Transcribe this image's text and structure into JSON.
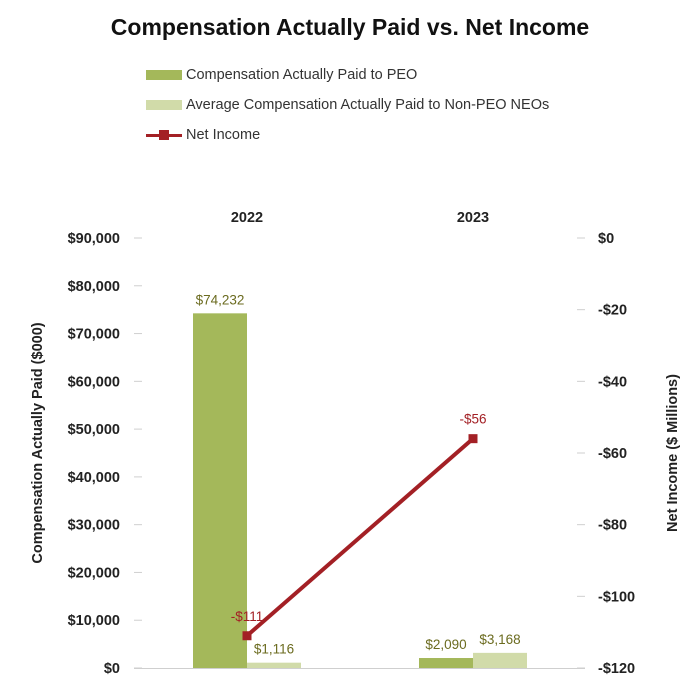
{
  "chart_data": {
    "type": "bar",
    "title": "Compensation Actually Paid vs. Net Income",
    "categories": [
      "2022",
      "2023"
    ],
    "series": [
      {
        "name": "Compensation Actually Paid to PEO",
        "type": "bar",
        "axis": "left",
        "color": "#a4b85a",
        "values": [
          74232,
          2090
        ],
        "labels": [
          "$74,232",
          "$2,090"
        ]
      },
      {
        "name": "Average Compensation Actually Paid to Non-PEO NEOs",
        "type": "bar",
        "axis": "left",
        "color": "#d1dba9",
        "values": [
          1116,
          3168
        ],
        "labels": [
          "$1,116",
          "$3,168"
        ]
      },
      {
        "name": "Net Income",
        "type": "line",
        "axis": "right",
        "color": "#a32025",
        "values": [
          -111,
          -56
        ],
        "labels": [
          "-$111",
          "-$56"
        ]
      }
    ],
    "ylabel": "Compensation Actually Paid ($000)",
    "y2label": "Net Income ($ Millions)",
    "ylim": [
      0,
      90000
    ],
    "y2lim": [
      -120,
      0
    ],
    "yticks": [
      0,
      10000,
      20000,
      30000,
      40000,
      50000,
      60000,
      70000,
      80000,
      90000
    ],
    "ytick_labels": [
      "$0",
      "$10,000",
      "$20,000",
      "$30,000",
      "$40,000",
      "$50,000",
      "$60,000",
      "$70,000",
      "$80,000",
      "$90,000"
    ],
    "y2ticks": [
      0,
      -20,
      -40,
      -60,
      -80,
      -100,
      -120
    ],
    "y2tick_labels": [
      "$0",
      "-$20",
      "-$40",
      "-$60",
      "-$80",
      "-$100",
      "-$120"
    ],
    "category_position": "top",
    "grid": false,
    "legend": "top-left"
  }
}
